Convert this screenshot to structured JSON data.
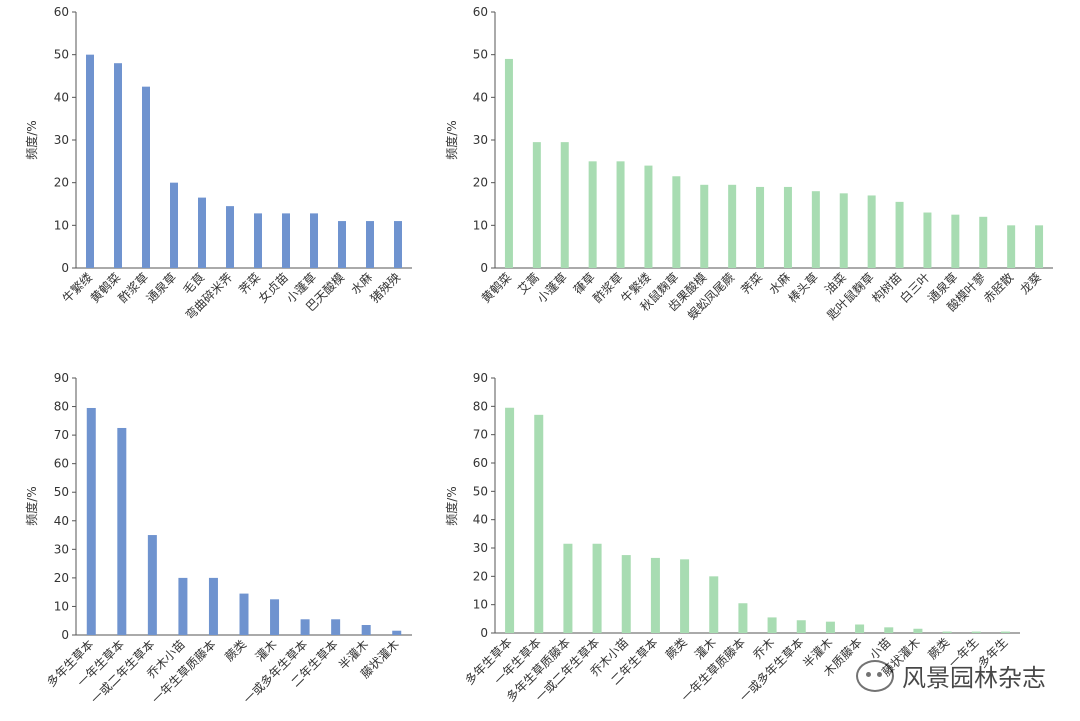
{
  "colors": {
    "blue": "#6f93cf",
    "green": "#a8dcb2",
    "axis": "#555555",
    "text": "#333333"
  },
  "chart_data": [
    {
      "type": "bar",
      "ylabel": "频度/%",
      "ylim": [
        0,
        60
      ],
      "yticks": [
        0,
        10,
        20,
        30,
        40,
        50,
        60
      ],
      "color": "#6f93cf",
      "categories": [
        "牛繁缕",
        "黄鹌菜",
        "酢浆草",
        "通泉草",
        "毛茛",
        "弯曲碎米荠",
        "荠菜",
        "女贞苗",
        "小蓬草",
        "巴天酸模",
        "水麻",
        "猪殃殃"
      ],
      "values": [
        50,
        48,
        42.5,
        20,
        16.5,
        14.5,
        12.8,
        12.8,
        12.8,
        11,
        11,
        11
      ]
    },
    {
      "type": "bar",
      "ylabel": "频度/%",
      "ylim": [
        0,
        60
      ],
      "yticks": [
        0,
        10,
        20,
        30,
        40,
        50,
        60
      ],
      "color": "#a8dcb2",
      "categories": [
        "黄鹌菜",
        "艾蒿",
        "小蓬草",
        "葎草",
        "酢浆草",
        "牛繁缕",
        "秋鼠麴草",
        "齿果酸模",
        "蜈蚣凤尾蕨",
        "荠菜",
        "水麻",
        "棒头草",
        "油菜",
        "匙叶鼠麴草",
        "构树苗",
        "白三叶",
        "通泉草",
        "酸模叶蓼",
        "赤胫散",
        "龙葵"
      ],
      "values": [
        49,
        29.5,
        29.5,
        25,
        25,
        24,
        21.5,
        19.5,
        19.5,
        19,
        19,
        18,
        17.5,
        17,
        15.5,
        13,
        12.5,
        12,
        10,
        10
      ]
    },
    {
      "type": "bar",
      "ylabel": "频度/%",
      "ylim": [
        0,
        90
      ],
      "yticks": [
        0,
        10,
        20,
        30,
        40,
        50,
        60,
        70,
        80,
        90
      ],
      "color": "#6f93cf",
      "categories": [
        "多年生草本",
        "一年生草本",
        "一或二年生草本",
        "乔木小苗",
        "一年生草质藤本",
        "蕨类",
        "灌木",
        "一或多年生草本",
        "二年生草本",
        "半灌木",
        "藤状灌木"
      ],
      "values": [
        79.5,
        72.5,
        35,
        20,
        20,
        14.5,
        12.5,
        5.5,
        5.5,
        3.5,
        1.5
      ]
    },
    {
      "type": "bar",
      "ylabel": "频度/%",
      "ylim": [
        0,
        90
      ],
      "yticks": [
        0,
        10,
        20,
        30,
        40,
        50,
        60,
        70,
        80,
        90
      ],
      "color": "#a8dcb2",
      "categories": [
        "多年生草本",
        "一年生草本",
        "多年生草质藤本",
        "一或二年生草本",
        "乔木小苗",
        "二年生草本",
        "蕨类",
        "灌木",
        "一年生草质藤本",
        "乔木",
        "一或多年生草本",
        "半灌木",
        "木质藤本",
        "小苗",
        "藤状灌木",
        "蕨类",
        "一年生",
        "多年生"
      ],
      "values": [
        79.5,
        77,
        31.5,
        31.5,
        27.5,
        26.5,
        26,
        20,
        10.5,
        5.5,
        4.5,
        4,
        3,
        2,
        1.5,
        0.5,
        0.5,
        0.5
      ]
    }
  ],
  "watermark": {
    "text": "风景园林杂志",
    "icon": "wechat-icon"
  }
}
